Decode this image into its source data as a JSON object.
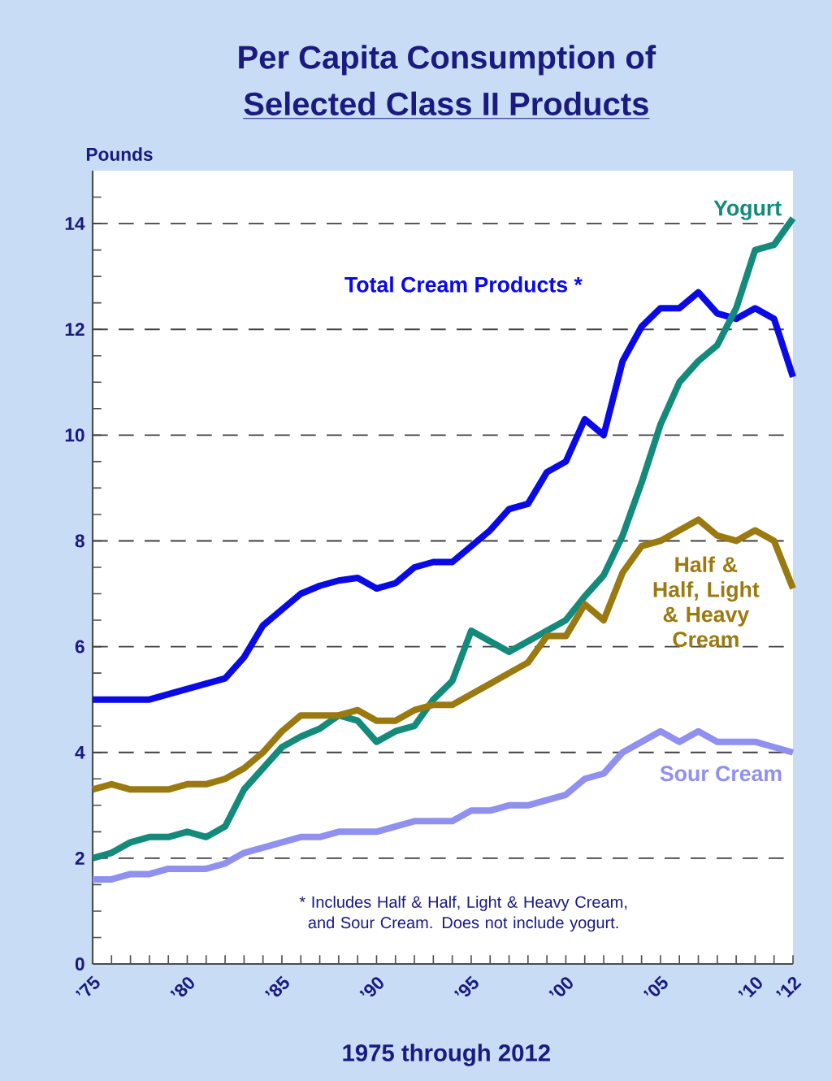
{
  "chart_data": {
    "type": "line",
    "title": "Per Capita Consumption of",
    "subtitle": "Selected Class II Products",
    "xlabel": "1975 through 2012",
    "ylabel": "Pounds",
    "x": [
      1975,
      1976,
      1977,
      1978,
      1979,
      1980,
      1981,
      1982,
      1983,
      1984,
      1985,
      1986,
      1987,
      1988,
      1989,
      1990,
      1991,
      1992,
      1993,
      1994,
      1995,
      1996,
      1997,
      1998,
      1999,
      2000,
      2001,
      2002,
      2003,
      2004,
      2005,
      2006,
      2007,
      2008,
      2009,
      2010,
      2011,
      2012
    ],
    "series": [
      {
        "name": "Total Cream Products *",
        "color": "#0a0ae6",
        "values": [
          5.0,
          5.0,
          5.0,
          5.0,
          5.1,
          5.2,
          5.3,
          5.4,
          5.8,
          6.4,
          6.7,
          7.0,
          7.15,
          7.25,
          7.3,
          7.1,
          7.2,
          7.5,
          7.6,
          7.6,
          7.9,
          8.2,
          8.6,
          8.7,
          9.3,
          9.5,
          10.3,
          10.0,
          11.4,
          12.05,
          12.4,
          12.4,
          12.7,
          12.3,
          12.2,
          12.4,
          12.2,
          11.1
        ]
      },
      {
        "name": "Yogurt",
        "color": "#138a7a",
        "values": [
          2.0,
          2.1,
          2.3,
          2.4,
          2.4,
          2.5,
          2.4,
          2.6,
          3.3,
          3.7,
          4.1,
          4.3,
          4.45,
          4.7,
          4.6,
          4.2,
          4.4,
          4.5,
          5.0,
          5.35,
          6.3,
          6.1,
          5.9,
          6.1,
          6.3,
          6.5,
          6.95,
          7.35,
          8.1,
          9.1,
          10.2,
          11.0,
          11.4,
          11.7,
          12.4,
          13.5,
          13.6,
          14.1
        ]
      },
      {
        "name": "Half & Half, Light & Heavy Cream",
        "color": "#9a7a10",
        "values": [
          3.3,
          3.4,
          3.3,
          3.3,
          3.3,
          3.4,
          3.4,
          3.5,
          3.7,
          4.0,
          4.4,
          4.7,
          4.7,
          4.7,
          4.8,
          4.6,
          4.6,
          4.8,
          4.9,
          4.9,
          5.1,
          5.3,
          5.5,
          5.7,
          6.2,
          6.2,
          6.8,
          6.5,
          7.4,
          7.9,
          8.0,
          8.2,
          8.4,
          8.1,
          8.0,
          8.2,
          8.0,
          7.1
        ]
      },
      {
        "name": "Sour Cream",
        "color": "#9090f0",
        "values": [
          1.6,
          1.6,
          1.7,
          1.7,
          1.8,
          1.8,
          1.8,
          1.9,
          2.1,
          2.2,
          2.3,
          2.4,
          2.4,
          2.5,
          2.5,
          2.5,
          2.6,
          2.7,
          2.7,
          2.7,
          2.9,
          2.9,
          3.0,
          3.0,
          3.1,
          3.2,
          3.5,
          3.6,
          4.0,
          4.2,
          4.4,
          4.2,
          4.4,
          4.2,
          4.2,
          4.2,
          4.1,
          4.0
        ]
      }
    ],
    "xlim": [
      1975,
      2012
    ],
    "xticks": [
      {
        "value": 1975,
        "label": "’75"
      },
      {
        "value": 1976,
        "label": null
      },
      {
        "value": 1977,
        "label": null
      },
      {
        "value": 1978,
        "label": null
      },
      {
        "value": 1979,
        "label": null
      },
      {
        "value": 1980,
        "label": "’80"
      },
      {
        "value": 1981,
        "label": null
      },
      {
        "value": 1982,
        "label": null
      },
      {
        "value": 1983,
        "label": null
      },
      {
        "value": 1984,
        "label": null
      },
      {
        "value": 1985,
        "label": "’85"
      },
      {
        "value": 1986,
        "label": null
      },
      {
        "value": 1987,
        "label": null
      },
      {
        "value": 1988,
        "label": null
      },
      {
        "value": 1989,
        "label": null
      },
      {
        "value": 1990,
        "label": "’90"
      },
      {
        "value": 1991,
        "label": null
      },
      {
        "value": 1992,
        "label": null
      },
      {
        "value": 1993,
        "label": null
      },
      {
        "value": 1994,
        "label": null
      },
      {
        "value": 1995,
        "label": "’95"
      },
      {
        "value": 1996,
        "label": null
      },
      {
        "value": 1997,
        "label": null
      },
      {
        "value": 1998,
        "label": null
      },
      {
        "value": 1999,
        "label": null
      },
      {
        "value": 2000,
        "label": "’00"
      },
      {
        "value": 2001,
        "label": null
      },
      {
        "value": 2002,
        "label": null
      },
      {
        "value": 2003,
        "label": null
      },
      {
        "value": 2004,
        "label": null
      },
      {
        "value": 2005,
        "label": "’05"
      },
      {
        "value": 2006,
        "label": null
      },
      {
        "value": 2007,
        "label": null
      },
      {
        "value": 2008,
        "label": null
      },
      {
        "value": 2009,
        "label": null
      },
      {
        "value": 2010,
        "label": "’10"
      },
      {
        "value": 2011,
        "label": null
      },
      {
        "value": 2012,
        "label": "’12"
      }
    ],
    "ylim": [
      0,
      15
    ],
    "yticks": [
      0,
      {
        "value": 0.5,
        "label": null
      },
      2,
      {
        "value": 1,
        "label": null
      },
      {
        "value": 1.5,
        "label": null
      },
      {
        "value": 2.5,
        "label": null
      },
      {
        "value": 3,
        "label": null
      },
      {
        "value": 3.5,
        "label": null
      },
      4,
      {
        "value": 4.5,
        "label": null
      },
      {
        "value": 5,
        "label": null
      },
      {
        "value": 5.5,
        "label": null
      },
      6,
      {
        "value": 6.5,
        "label": null
      },
      {
        "value": 7,
        "label": null
      },
      {
        "value": 7.5,
        "label": null
      },
      8,
      {
        "value": 8.5,
        "label": null
      },
      {
        "value": 9,
        "label": null
      },
      {
        "value": 9.5,
        "label": null
      },
      10,
      {
        "value": 10.5,
        "label": null
      },
      {
        "value": 11,
        "label": null
      },
      {
        "value": 11.5,
        "label": null
      },
      12,
      {
        "value": 12.5,
        "label": null
      },
      {
        "value": 13,
        "label": null
      },
      {
        "value": 13.5,
        "label": null
      },
      14,
      {
        "value": 14.5,
        "label": null
      }
    ],
    "grid": "y",
    "line_style": "solid",
    "annotations": [
      "* Includes Half & Half, Light & Heavy Cream, and Sour Cream. Does not include yogurt."
    ]
  }
}
